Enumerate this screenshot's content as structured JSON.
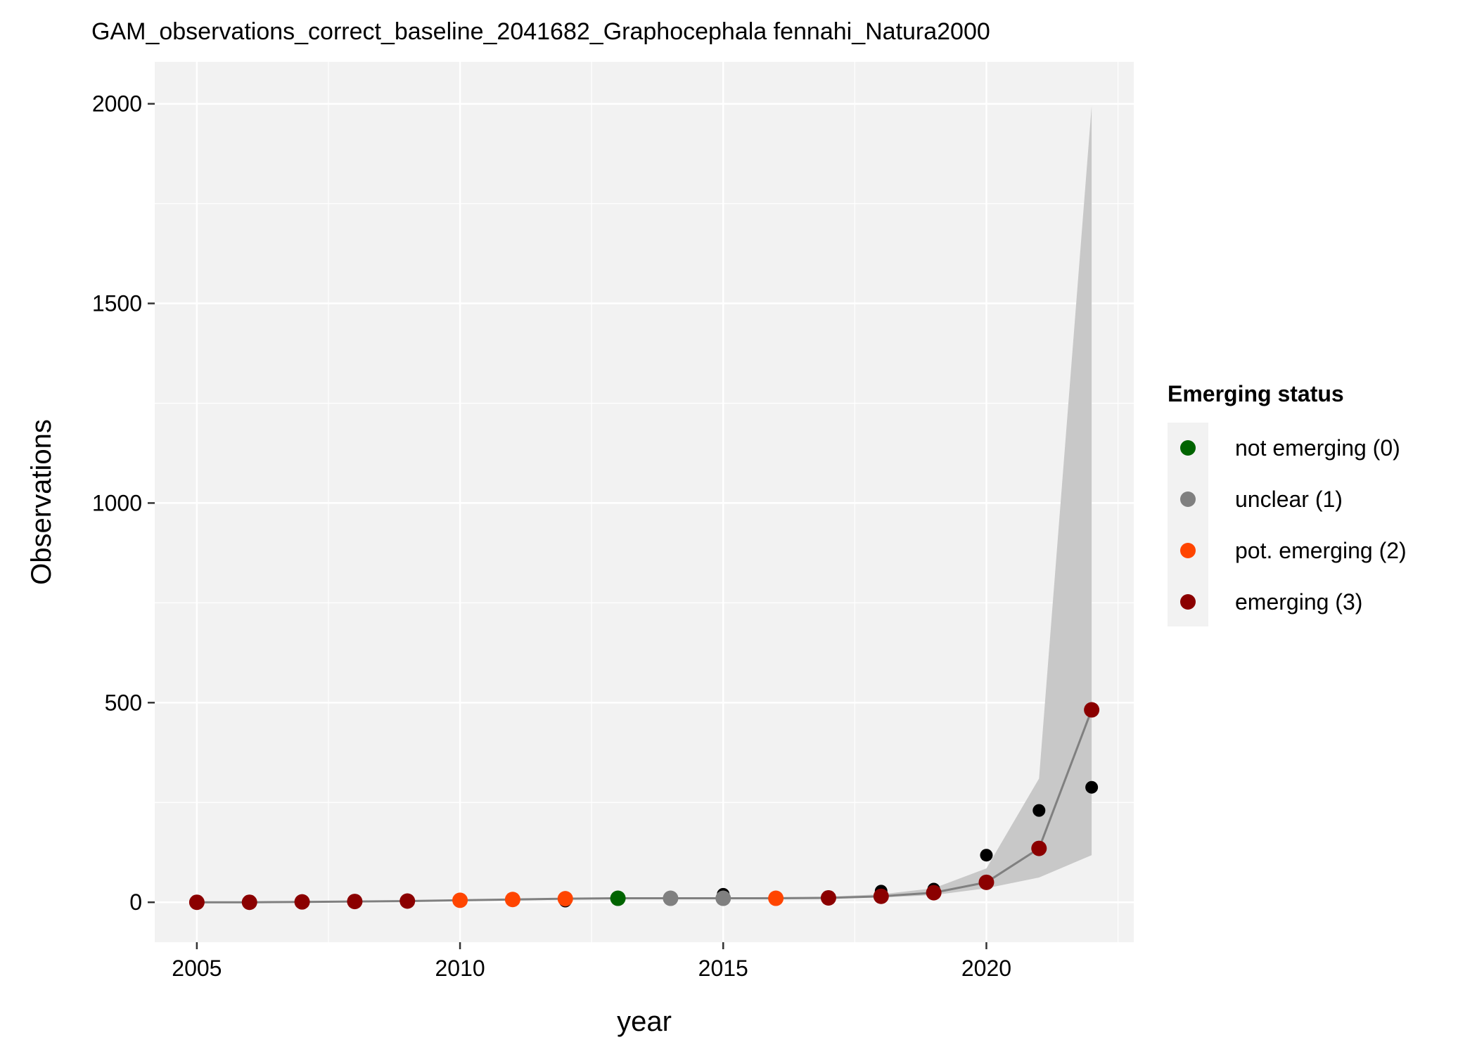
{
  "chart_data": {
    "type": "line",
    "title": "GAM_observations_correct_baseline_2041682_Graphocephala fennahi_Natura2000",
    "xlabel": "year",
    "ylabel": "Observations",
    "xlim": [
      2004.2,
      2022.8
    ],
    "ylim": [
      -100,
      2105
    ],
    "xticks": [
      2005,
      2010,
      2015,
      2020
    ],
    "yticks": [
      0,
      500,
      1000,
      1500,
      2000
    ],
    "grid": true,
    "legend": {
      "title": "Emerging status",
      "position": "right",
      "entries": [
        {
          "label": "not emerging (0)",
          "color": "#006400"
        },
        {
          "label": "unclear (1)",
          "color": "#808080"
        },
        {
          "label": "pot. emerging (2)",
          "color": "#FF4500"
        },
        {
          "label": "emerging (3)",
          "color": "#8B0000"
        }
      ]
    },
    "observed": {
      "color": "#000000",
      "x": [
        2005,
        2006,
        2007,
        2008,
        2009,
        2010,
        2011,
        2012,
        2013,
        2014,
        2015,
        2016,
        2017,
        2018,
        2019,
        2020,
        2021,
        2022
      ],
      "y": [
        0,
        0,
        0,
        1,
        2,
        4,
        6,
        3,
        10,
        10,
        20,
        10,
        14,
        28,
        33,
        118,
        230,
        288
      ]
    },
    "fit": {
      "color": "#808080",
      "x": [
        2005,
        2006,
        2007,
        2008,
        2009,
        2010,
        2011,
        2012,
        2013,
        2014,
        2015,
        2016,
        2017,
        2018,
        2019,
        2020,
        2021,
        2022
      ],
      "y": [
        0,
        0,
        1,
        2,
        3,
        5,
        7,
        9,
        10,
        10,
        10,
        10,
        11,
        15,
        24,
        50,
        135,
        482
      ],
      "status": [
        3,
        3,
        3,
        3,
        3,
        2,
        2,
        2,
        0,
        1,
        1,
        2,
        3,
        3,
        3,
        3,
        3,
        3
      ]
    },
    "ribbon": {
      "color": "#C8C8C8",
      "x": [
        2005,
        2006,
        2007,
        2008,
        2009,
        2010,
        2011,
        2012,
        2013,
        2014,
        2015,
        2016,
        2017,
        2018,
        2019,
        2020,
        2021,
        2022
      ],
      "lower": [
        0,
        0,
        0,
        1,
        2,
        4,
        6,
        8,
        9,
        9,
        9,
        9,
        10,
        12,
        18,
        35,
        62,
        118
      ],
      "upper": [
        1,
        1,
        2,
        3,
        4,
        6,
        8,
        10,
        11,
        11,
        12,
        13,
        14,
        20,
        35,
        85,
        310,
        1995
      ]
    }
  }
}
